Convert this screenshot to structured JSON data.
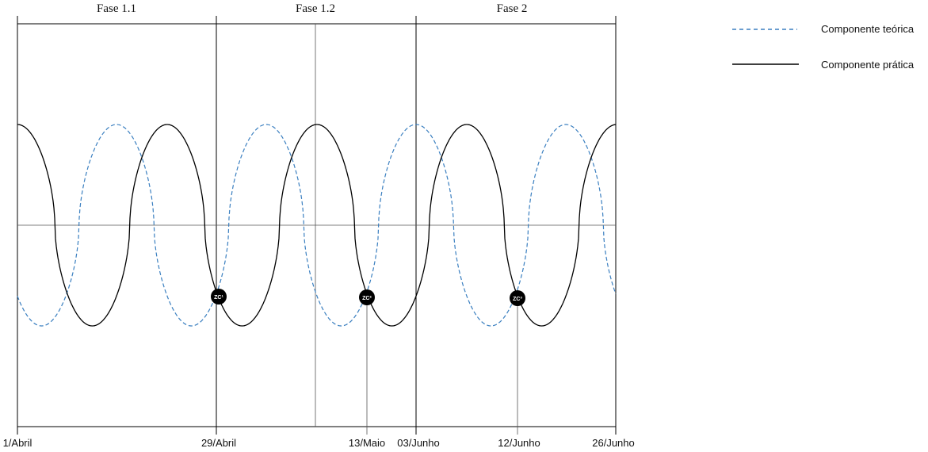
{
  "chart_data": {
    "type": "line",
    "title": "",
    "xlabel": "",
    "ylabel": "",
    "phases": [
      {
        "label": "Fase 1.1",
        "start": "01/Abril",
        "end": "29/Abril"
      },
      {
        "label": "Fase 1.2",
        "start": "29/Abril",
        "end": "03/Junho"
      },
      {
        "label": "Fase 2",
        "start": "03/Junho",
        "end": "26/Junho"
      }
    ],
    "x_tick_labels": [
      "1/Abril",
      "29/Abril",
      "13/Maio",
      "03/Junho",
      "12/Junho",
      "26/Junho"
    ],
    "series": [
      {
        "name": "Componente teórica",
        "style": "dashed",
        "color": "#3a7fc0",
        "peaks": 4,
        "shape": "periodic wave, shifted from the practical one"
      },
      {
        "name": "Componente prática",
        "style": "solid",
        "color": "#000000",
        "peaks": 4,
        "shape": "periodic wave"
      }
    ],
    "markers": [
      {
        "label": "ZC¹",
        "at": "29/Abril"
      },
      {
        "label": "ZC²",
        "at": "13/Maio"
      },
      {
        "label": "ZC³",
        "at": "12/Junho"
      }
    ],
    "legend": {
      "placement": "top-right"
    },
    "grid": false
  }
}
